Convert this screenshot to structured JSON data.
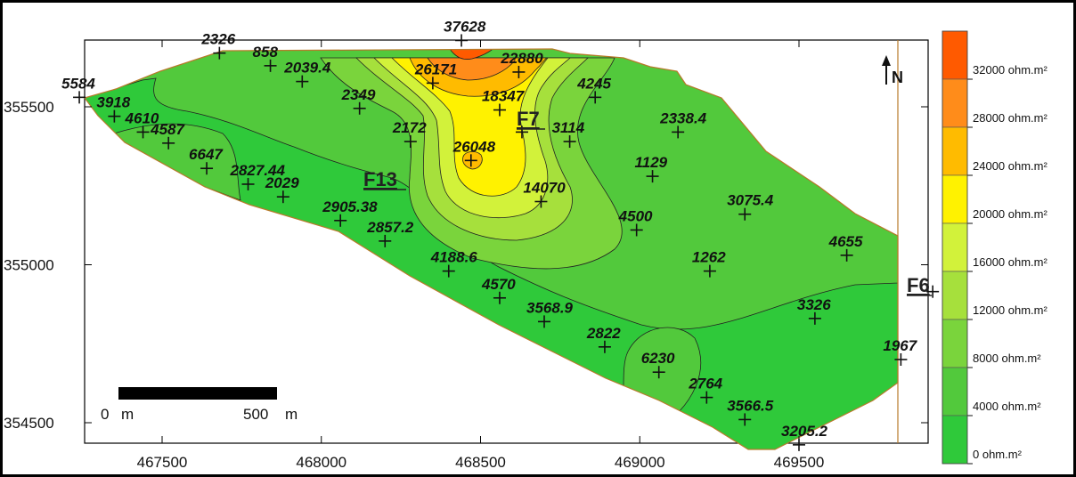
{
  "map": {
    "x_ticks": [
      "467500",
      "468000",
      "468500",
      "469000",
      "469500"
    ],
    "y_ticks": [
      "355500",
      "355000",
      "354500"
    ],
    "north_label": "N",
    "scale_bar": {
      "start_label": "0",
      "start_unit": "m",
      "end_label": "500",
      "end_unit": "m"
    },
    "faults": [
      "F13",
      "F7",
      "F6"
    ],
    "stations": [
      {
        "label": "37628",
        "x": 468440,
        "y": 355710
      },
      {
        "label": "2326",
        "x": 467680,
        "y": 355670
      },
      {
        "label": "858",
        "x": 467840,
        "y": 355630
      },
      {
        "label": "2039.4",
        "x": 467940,
        "y": 355580
      },
      {
        "label": "26171",
        "x": 468350,
        "y": 355575
      },
      {
        "label": "22880",
        "x": 468620,
        "y": 355610
      },
      {
        "label": "5584",
        "x": 467240,
        "y": 355530
      },
      {
        "label": "3918",
        "x": 467350,
        "y": 355470
      },
      {
        "label": "4610",
        "x": 467440,
        "y": 355420
      },
      {
        "label": "4587",
        "x": 467520,
        "y": 355385
      },
      {
        "label": "2349",
        "x": 468120,
        "y": 355495
      },
      {
        "label": "18347",
        "x": 468560,
        "y": 355490
      },
      {
        "label": "4245",
        "x": 468860,
        "y": 355530
      },
      {
        "label": "F7-station",
        "x": 468630,
        "y": 355420
      },
      {
        "label": "2172",
        "x": 468280,
        "y": 355390
      },
      {
        "label": "3114",
        "x": 468780,
        "y": 355390
      },
      {
        "label": "2338.4",
        "x": 469120,
        "y": 355420
      },
      {
        "label": "6647",
        "x": 467640,
        "y": 355305
      },
      {
        "label": "2827.44",
        "x": 467770,
        "y": 355255
      },
      {
        "label": "26048",
        "x": 468470,
        "y": 355330
      },
      {
        "label": "1129",
        "x": 469040,
        "y": 355280
      },
      {
        "label": "2029",
        "x": 467880,
        "y": 355215
      },
      {
        "label": "2905.38",
        "x": 468060,
        "y": 355140
      },
      {
        "label": "14070",
        "x": 468690,
        "y": 355200
      },
      {
        "label": "3075.4",
        "x": 469330,
        "y": 355160
      },
      {
        "label": "2857.2",
        "x": 468200,
        "y": 355075
      },
      {
        "label": "4500",
        "x": 468990,
        "y": 355110
      },
      {
        "label": "4655",
        "x": 469650,
        "y": 355030
      },
      {
        "label": "1262",
        "x": 469220,
        "y": 354980
      },
      {
        "label": "4188.6",
        "x": 468400,
        "y": 354980
      },
      {
        "label": "4570",
        "x": 468560,
        "y": 354895
      },
      {
        "label": "3568.9",
        "x": 468700,
        "y": 354820
      },
      {
        "label": "3326",
        "x": 469550,
        "y": 354830
      },
      {
        "label": "2822",
        "x": 468890,
        "y": 354740
      },
      {
        "label": "1967",
        "x": 469820,
        "y": 354700
      },
      {
        "label": "6230",
        "x": 469060,
        "y": 354660
      },
      {
        "label": "2764",
        "x": 469210,
        "y": 354580
      },
      {
        "label": "3566.5",
        "x": 469330,
        "y": 354510
      },
      {
        "label": "3205.2",
        "x": 469500,
        "y": 354430
      },
      {
        "label": "F6-station",
        "x": 469920,
        "y": 354915
      }
    ]
  },
  "legend": {
    "items": [
      {
        "label": "32000 ohm.m²",
        "color": "#ff5a00"
      },
      {
        "label": "28000 ohm.m²",
        "color": "#ff8c1a"
      },
      {
        "label": "24000 ohm.m²",
        "color": "#ffbb00"
      },
      {
        "label": "20000 ohm.m²",
        "color": "#fff200"
      },
      {
        "label": "16000 ohm.m²",
        "color": "#d2f23a"
      },
      {
        "label": "12000 ohm.m²",
        "color": "#a6e03c"
      },
      {
        "label": "8000 ohm.m²",
        "color": "#7ad43c"
      },
      {
        "label": "4000 ohm.m²",
        "color": "#52c93c"
      },
      {
        "label": "0 ohm.m²",
        "color": "#2fc93a"
      }
    ]
  },
  "colors": {
    "boundary": "#b87a2a",
    "base_fill": "#30c93a"
  }
}
